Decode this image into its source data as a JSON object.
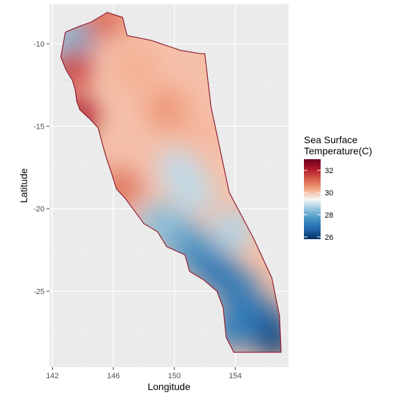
{
  "chart_data": {
    "type": "heatmap",
    "xlabel": "Longitude",
    "ylabel": "Latitude",
    "x_ticks": [
      "142",
      "146",
      "150",
      "154"
    ],
    "y_ticks": [
      "-10",
      "-15",
      "-20",
      "-25"
    ],
    "x_tick_values": [
      142,
      146,
      150,
      154
    ],
    "y_tick_values": [
      -10,
      -15,
      -20,
      -25
    ],
    "xlim": [
      141.8,
      157.5
    ],
    "ylim": [
      -29.6,
      -7.6
    ],
    "grid": true,
    "legend": {
      "title_lines": [
        "Sea Surface",
        "Temperature(C)"
      ],
      "labels": [
        "32",
        "30",
        "28",
        "26"
      ],
      "values": [
        32,
        30,
        28,
        26
      ],
      "range": [
        25.8,
        33.0
      ],
      "placement": "right",
      "colors": [
        "#053061",
        "#2166ac",
        "#4393c3",
        "#92c5de",
        "#f7f7f7",
        "#f4a582",
        "#d6604d",
        "#b2182b",
        "#67001f"
      ]
    },
    "region_outline": [
      [
        142.55,
        -10.8
      ],
      [
        142.85,
        -9.3
      ],
      [
        143.6,
        -9.0
      ],
      [
        144.5,
        -8.7
      ],
      [
        145.6,
        -8.1
      ],
      [
        146.6,
        -8.4
      ],
      [
        146.9,
        -9.5
      ],
      [
        148.5,
        -9.8
      ],
      [
        150.4,
        -10.4
      ],
      [
        151.7,
        -10.6
      ],
      [
        152.0,
        -10.6
      ],
      [
        152.4,
        -13.8
      ],
      [
        153.6,
        -19.0
      ],
      [
        155.2,
        -21.8
      ],
      [
        156.4,
        -24.2
      ],
      [
        156.9,
        -26.5
      ],
      [
        157.0,
        -28.5
      ],
      [
        157.0,
        -28.7
      ],
      [
        153.9,
        -28.7
      ],
      [
        153.4,
        -27.8
      ],
      [
        153.2,
        -26.0
      ],
      [
        152.8,
        -25.0
      ],
      [
        151.9,
        -24.3
      ],
      [
        151.0,
        -23.8
      ],
      [
        150.7,
        -22.8
      ],
      [
        149.5,
        -22.3
      ],
      [
        148.9,
        -21.4
      ],
      [
        148.0,
        -20.9
      ],
      [
        146.8,
        -19.4
      ],
      [
        146.2,
        -18.8
      ],
      [
        145.9,
        -17.9
      ],
      [
        145.5,
        -16.8
      ],
      [
        145.2,
        -15.8
      ],
      [
        145.0,
        -15.1
      ],
      [
        144.5,
        -14.6
      ],
      [
        143.8,
        -14.0
      ],
      [
        143.6,
        -13.5
      ],
      [
        143.5,
        -12.8
      ],
      [
        143.3,
        -12.2
      ],
      [
        142.9,
        -11.6
      ]
    ],
    "temperature_points": [
      {
        "lon": 156.5,
        "lat": -27.8,
        "value": 26.0
      },
      {
        "lon": 155.8,
        "lat": -26.8,
        "value": 26.4
      },
      {
        "lon": 154.8,
        "lat": -26.6,
        "value": 26.8
      },
      {
        "lon": 153.8,
        "lat": -27.3,
        "value": 27.2
      },
      {
        "lon": 154.2,
        "lat": -25.0,
        "value": 27.1
      },
      {
        "lon": 152.8,
        "lat": -23.8,
        "value": 27.0
      },
      {
        "lon": 151.5,
        "lat": -22.8,
        "value": 27.3
      },
      {
        "lon": 150.3,
        "lat": -21.7,
        "value": 27.8
      },
      {
        "lon": 149.0,
        "lat": -20.9,
        "value": 28.4
      },
      {
        "lon": 153.8,
        "lat": -21.3,
        "value": 28.8
      },
      {
        "lon": 150.3,
        "lat": -17.6,
        "value": 28.9
      },
      {
        "lon": 151.2,
        "lat": -19.0,
        "value": 28.9
      },
      {
        "lon": 143.2,
        "lat": -9.8,
        "value": 26.8
      },
      {
        "lon": 142.6,
        "lat": -10.0,
        "value": 28.5
      },
      {
        "lon": 149.5,
        "lat": -14.0,
        "value": 30.5
      },
      {
        "lon": 147.5,
        "lat": -11.5,
        "value": 30.2
      },
      {
        "lon": 145.5,
        "lat": -8.4,
        "value": 31.0
      },
      {
        "lon": 143.6,
        "lat": -14.5,
        "value": 32.2
      },
      {
        "lon": 143.2,
        "lat": -11.5,
        "value": 31.6
      },
      {
        "lon": 146.5,
        "lat": -18.6,
        "value": 31.0
      },
      {
        "lon": 147.2,
        "lat": -16.5,
        "value": 30.0
      },
      {
        "lon": 151.5,
        "lat": -15.5,
        "value": 30.1
      }
    ]
  }
}
